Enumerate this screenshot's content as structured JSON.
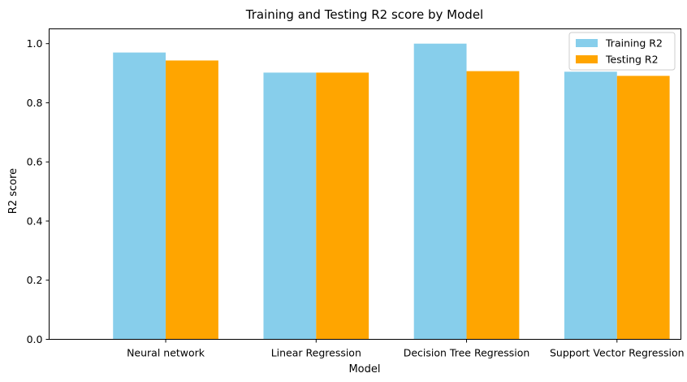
{
  "chart_data": {
    "type": "bar",
    "title": "Training and Testing R2 score by Model",
    "xlabel": "Model",
    "ylabel": "R2 score",
    "categories": [
      "Neural network",
      "Linear Regression",
      "Decision Tree Regression",
      "Support Vector Regression"
    ],
    "series": [
      {
        "name": "Training R2",
        "color": "#87CEEB",
        "values": [
          0.97,
          0.902,
          1.0,
          0.905
        ]
      },
      {
        "name": "Testing R2",
        "color": "#FFA500",
        "values": [
          0.943,
          0.902,
          0.907,
          0.891
        ]
      }
    ],
    "ylim": [
      0,
      1.05
    ],
    "yticks": [
      0.0,
      0.2,
      0.4,
      0.6,
      0.8,
      1.0
    ],
    "ytick_labels": [
      "0.0",
      "0.2",
      "0.4",
      "0.6",
      "0.8",
      "1.0"
    ],
    "grid": false,
    "legend_position": "top-right"
  }
}
